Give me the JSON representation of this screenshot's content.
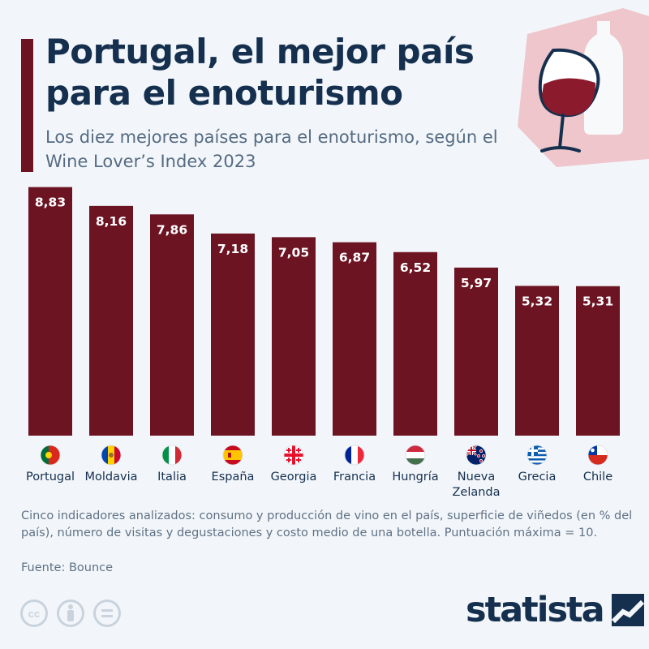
{
  "header": {
    "title": "Portugal, el mejor país para el enoturismo",
    "subtitle": "Los diez mejores países para el enoturismo, según el Wine Lover’s Index 2023"
  },
  "colors": {
    "bar": "#6d1423",
    "title": "#152f4e",
    "text": "#5f7184",
    "icon_bg": "#eec6cb"
  },
  "icons": {
    "header_icon": "wine-glass-bottle-icon",
    "brand_icon": "statista-logo-icon"
  },
  "chart_data": {
    "type": "bar",
    "categories": [
      "Portugal",
      "Moldavia",
      "Italia",
      "España",
      "Georgia",
      "Francia",
      "Hungría",
      "Nueva Zelanda",
      "Grecia",
      "Chile"
    ],
    "category_lines": [
      [
        "Portugal"
      ],
      [
        "Moldavia"
      ],
      [
        "Italia"
      ],
      [
        "España"
      ],
      [
        "Georgia"
      ],
      [
        "Francia"
      ],
      [
        "Hungría"
      ],
      [
        "Nueva",
        "Zelanda"
      ],
      [
        "Grecia"
      ],
      [
        "Chile"
      ]
    ],
    "flags": [
      "portugal-flag-icon",
      "moldova-flag-icon",
      "italy-flag-icon",
      "spain-flag-icon",
      "georgia-flag-icon",
      "france-flag-icon",
      "hungary-flag-icon",
      "new-zealand-flag-icon",
      "greece-flag-icon",
      "chile-flag-icon"
    ],
    "values": [
      8.83,
      8.16,
      7.86,
      7.18,
      7.05,
      6.87,
      6.52,
      5.97,
      5.32,
      5.31
    ],
    "value_labels": [
      "8,83",
      "8,16",
      "7,86",
      "7,18",
      "7,05",
      "6,87",
      "6,52",
      "5,97",
      "5,32",
      "5,31"
    ],
    "ylim": [
      0,
      10
    ],
    "grid": false
  },
  "footer": {
    "note": "Cinco indicadores analizados: consumo y producción de vino en el país, superficie de viñedos (en % del país), número de visitas y degustaciones y costo medio de una botella. Puntuación máxima = 10.",
    "source": "Fuente: Bounce",
    "brand": "statista",
    "license_icons": [
      "cc-icon",
      "attribution-icon",
      "no-derivatives-icon"
    ]
  }
}
